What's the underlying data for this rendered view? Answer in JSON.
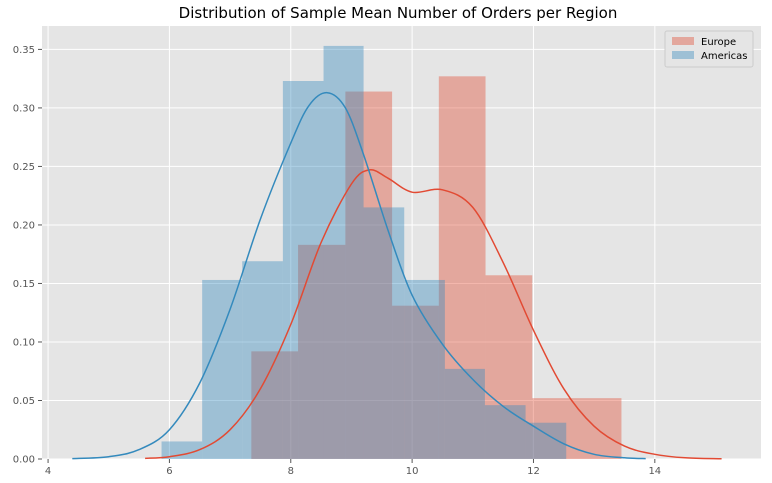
{
  "chart_data": {
    "type": "histogram",
    "title": "Distribution of Sample Mean Number of Orders per Region",
    "xlabel": "",
    "ylabel": "",
    "xlim": [
      3.9,
      15.75
    ],
    "ylim": [
      0,
      0.37
    ],
    "x_ticks": [
      4,
      6,
      8,
      10,
      12,
      14
    ],
    "y_ticks": [
      0.0,
      0.05,
      0.1,
      0.15,
      0.2,
      0.25,
      0.3,
      0.35
    ],
    "y_tick_labels": [
      "0.00",
      "0.05",
      "0.10",
      "0.15",
      "0.20",
      "0.25",
      "0.30",
      "0.35"
    ],
    "grid": true,
    "legend_position": "top-right",
    "series": [
      {
        "name": "Europe",
        "color": "#E24A33",
        "bins": [
          {
            "x0": 7.35,
            "x1": 8.12,
            "density": 0.092
          },
          {
            "x0": 8.12,
            "x1": 8.9,
            "density": 0.183
          },
          {
            "x0": 8.9,
            "x1": 9.67,
            "density": 0.314
          },
          {
            "x0": 9.67,
            "x1": 10.44,
            "density": 0.131
          },
          {
            "x0": 10.44,
            "x1": 11.21,
            "density": 0.327
          },
          {
            "x0": 11.21,
            "x1": 11.98,
            "density": 0.157
          },
          {
            "x0": 11.98,
            "x1": 13.45,
            "density": 0.052
          }
        ],
        "kde": {
          "x": [
            5.6,
            6.0,
            6.5,
            7.0,
            7.5,
            8.0,
            8.5,
            9.0,
            9.3,
            9.6,
            10.0,
            10.5,
            11.0,
            11.5,
            12.0,
            12.5,
            13.0,
            13.5,
            14.0,
            14.5,
            15.1
          ],
          "y": [
            0.0005,
            0.002,
            0.008,
            0.025,
            0.06,
            0.115,
            0.185,
            0.235,
            0.247,
            0.24,
            0.228,
            0.23,
            0.215,
            0.168,
            0.11,
            0.06,
            0.028,
            0.011,
            0.004,
            0.001,
            0.0002
          ]
        }
      },
      {
        "name": "Americas",
        "color": "#348ABD",
        "bins": [
          {
            "x0": 5.87,
            "x1": 6.54,
            "density": 0.015
          },
          {
            "x0": 6.54,
            "x1": 7.2,
            "density": 0.153
          },
          {
            "x0": 7.2,
            "x1": 7.87,
            "density": 0.169
          },
          {
            "x0": 7.87,
            "x1": 8.54,
            "density": 0.323
          },
          {
            "x0": 8.54,
            "x1": 9.2,
            "density": 0.353
          },
          {
            "x0": 9.2,
            "x1": 9.87,
            "density": 0.215
          },
          {
            "x0": 9.87,
            "x1": 10.54,
            "density": 0.153
          },
          {
            "x0": 10.54,
            "x1": 11.2,
            "density": 0.077
          },
          {
            "x0": 11.2,
            "x1": 11.87,
            "density": 0.046
          },
          {
            "x0": 11.87,
            "x1": 12.54,
            "density": 0.031
          }
        ],
        "kde": {
          "x": [
            4.4,
            5.0,
            5.5,
            6.0,
            6.5,
            7.0,
            7.5,
            8.0,
            8.3,
            8.6,
            8.9,
            9.2,
            9.6,
            10.0,
            10.5,
            11.0,
            11.5,
            12.0,
            12.5,
            13.0,
            13.5,
            13.85
          ],
          "y": [
            0.0003,
            0.002,
            0.008,
            0.025,
            0.065,
            0.128,
            0.205,
            0.27,
            0.302,
            0.313,
            0.3,
            0.26,
            0.196,
            0.14,
            0.098,
            0.068,
            0.045,
            0.028,
            0.013,
            0.004,
            0.001,
            0.0003
          ]
        }
      }
    ],
    "bar_alpha": 0.4
  }
}
